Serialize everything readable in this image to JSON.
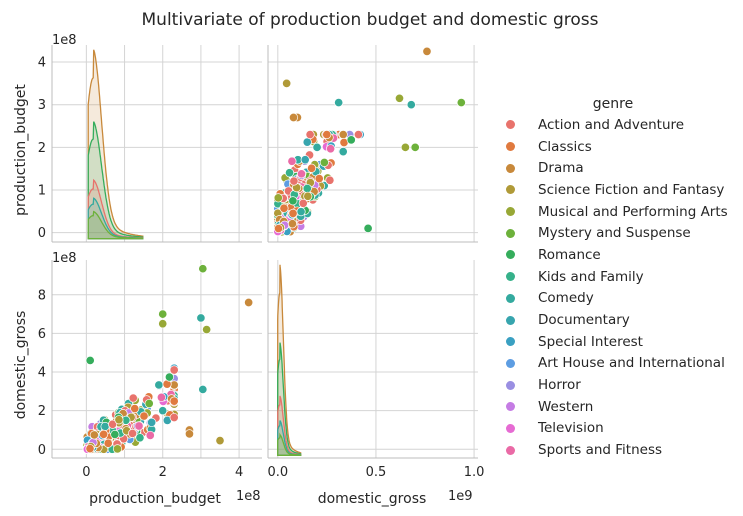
{
  "chart_data": {
    "type": "scatter",
    "title": "Multivariate of production budget and domestic gross",
    "variables": [
      {
        "name": "production_budget",
        "ticks": [
          0,
          1,
          2,
          3,
          4
        ],
        "range": [
          -0.9,
          4.6
        ],
        "exponent": "1e8"
      },
      {
        "name": "domestic_gross",
        "ticks": [
          0,
          2,
          4,
          6,
          8
        ],
        "range": [
          -0.45,
          9.8
        ],
        "exponent": "1e8",
        "tick_labels_x": [
          "0.0",
          "0.5",
          "1.0"
        ],
        "ticks_x": [
          0,
          0.5,
          1.0
        ],
        "range_x": [
          -0.05,
          1.02
        ],
        "exponent_x": "1e9"
      }
    ],
    "grid": true,
    "legend": {
      "title": "genre",
      "placement": "right",
      "entries": [
        {
          "name": "Action and Adventure",
          "color": "#e8736c"
        },
        {
          "name": "Classics",
          "color": "#e07a3f"
        },
        {
          "name": "Drama",
          "color": "#c8893b"
        },
        {
          "name": "Science Fiction and Fantasy",
          "color": "#b09a38"
        },
        {
          "name": "Musical and Performing Arts",
          "color": "#98a836"
        },
        {
          "name": "Mystery and Suspense",
          "color": "#6db13b"
        },
        {
          "name": "Romance",
          "color": "#35ad5c"
        },
        {
          "name": "Kids and Family",
          "color": "#36b18a"
        },
        {
          "name": "Comedy",
          "color": "#34aa9f"
        },
        {
          "name": "Documentary",
          "color": "#37a5ae"
        },
        {
          "name": "Special Interest",
          "color": "#3aa0c2"
        },
        {
          "name": "Art House and International",
          "color": "#5d9de2"
        },
        {
          "name": "Horror",
          "color": "#9a8fe2"
        },
        {
          "name": "Western",
          "color": "#c57ce4"
        },
        {
          "name": "Television",
          "color": "#e66bd3"
        },
        {
          "name": "Sports and Fitness",
          "color": "#ea6aa6"
        }
      ]
    },
    "kde_peaks_budget": [
      {
        "series": "Drama",
        "peak": 0.42
      },
      {
        "series": "Romance",
        "peak": 0.26
      },
      {
        "series": "Action and Adventure",
        "peak": 0.13
      },
      {
        "series": "Comedy",
        "peak": 0.09
      },
      {
        "series": "Mystery and Suspense",
        "peak": 0.06
      }
    ],
    "kde_peaks_gross": [
      {
        "series": "Drama",
        "peak": 0.93
      },
      {
        "series": "Romance",
        "peak": 0.55
      },
      {
        "series": "Action and Adventure",
        "peak": 0.29
      },
      {
        "series": "Comedy",
        "peak": 0.17
      },
      {
        "series": "Mystery and Suspense",
        "peak": 0.1
      }
    ],
    "outliers_gross_vs_budget": [
      {
        "budget": 4.25,
        "gross": 7.6,
        "series": "Drama"
      },
      {
        "budget": 3.05,
        "gross": 9.35,
        "series": "Mystery and Suspense"
      },
      {
        "budget": 2.0,
        "gross": 7.0,
        "series": "Mystery and Suspense"
      },
      {
        "budget": 3.0,
        "gross": 6.8,
        "series": "Comedy"
      },
      {
        "budget": 3.15,
        "gross": 6.2,
        "series": "Musical and Performing Arts"
      },
      {
        "budget": 2.0,
        "gross": 6.5,
        "series": "Musical and Performing Arts"
      },
      {
        "budget": 3.5,
        "gross": 0.45,
        "series": "Science Fiction and Fantasy"
      },
      {
        "budget": 3.05,
        "gross": 3.1,
        "series": "Comedy"
      },
      {
        "budget": 2.0,
        "gross": 2.0,
        "series": "Comedy"
      },
      {
        "budget": 0.1,
        "gross": 4.6,
        "series": "Romance"
      },
      {
        "budget": 2.7,
        "gross": 1.0,
        "series": "Drama"
      },
      {
        "budget": 2.7,
        "gross": 0.8,
        "series": "Drama"
      }
    ]
  }
}
